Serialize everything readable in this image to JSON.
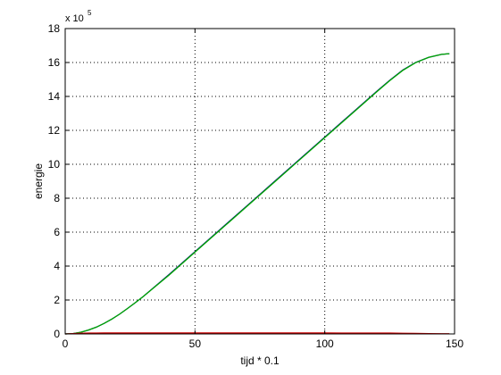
{
  "chart_data": {
    "type": "line",
    "xlabel": "tijd * 0.1",
    "ylabel": "energie",
    "y_exponent": {
      "base": "x 10",
      "power": "5"
    },
    "xlim": [
      0,
      150
    ],
    "ylim": [
      0,
      18
    ],
    "x_ticks": [
      0,
      50,
      100,
      150
    ],
    "y_ticks": [
      0,
      2,
      4,
      6,
      8,
      10,
      12,
      14,
      16,
      18
    ],
    "grid": true,
    "series": [
      {
        "color": "#00008b",
        "x": [
          0,
          3,
          6,
          9,
          12,
          15,
          18,
          21,
          24,
          27,
          30,
          40,
          50,
          60,
          70,
          80,
          90,
          100,
          110,
          120,
          125,
          130,
          135,
          140,
          145,
          148
        ],
        "y": [
          0,
          0.02,
          0.1,
          0.23,
          0.4,
          0.62,
          0.88,
          1.17,
          1.5,
          1.84,
          2.2,
          3.5,
          4.85,
          6.2,
          7.55,
          8.9,
          10.25,
          11.6,
          12.95,
          14.3,
          14.95,
          15.55,
          16.0,
          16.3,
          16.48,
          16.52
        ]
      },
      {
        "color": "#00aa00",
        "x": [
          0,
          3,
          6,
          9,
          12,
          15,
          18,
          21,
          24,
          27,
          30,
          40,
          50,
          60,
          70,
          80,
          90,
          100,
          110,
          120,
          125,
          130,
          135,
          140,
          145,
          148
        ],
        "y": [
          0,
          0.02,
          0.1,
          0.23,
          0.4,
          0.62,
          0.88,
          1.17,
          1.5,
          1.84,
          2.2,
          3.47,
          4.82,
          6.17,
          7.52,
          8.87,
          10.22,
          11.57,
          12.92,
          14.27,
          14.93,
          15.53,
          15.99,
          16.3,
          16.48,
          16.52
        ]
      },
      {
        "color": "#cc0000",
        "x": [
          0,
          3,
          6,
          9,
          12,
          15,
          18,
          21,
          24,
          27,
          30,
          40,
          50,
          60,
          70,
          80,
          90,
          100,
          110,
          120,
          125,
          130,
          135,
          140,
          145,
          148
        ],
        "y": [
          0,
          0.02,
          0.04,
          0.05,
          0.05,
          0.06,
          0.06,
          0.06,
          0.06,
          0.06,
          0.06,
          0.06,
          0.06,
          0.06,
          0.06,
          0.06,
          0.06,
          0.06,
          0.05,
          0.05,
          0.05,
          0.04,
          0.03,
          0.02,
          0.01,
          0.01
        ]
      }
    ]
  }
}
